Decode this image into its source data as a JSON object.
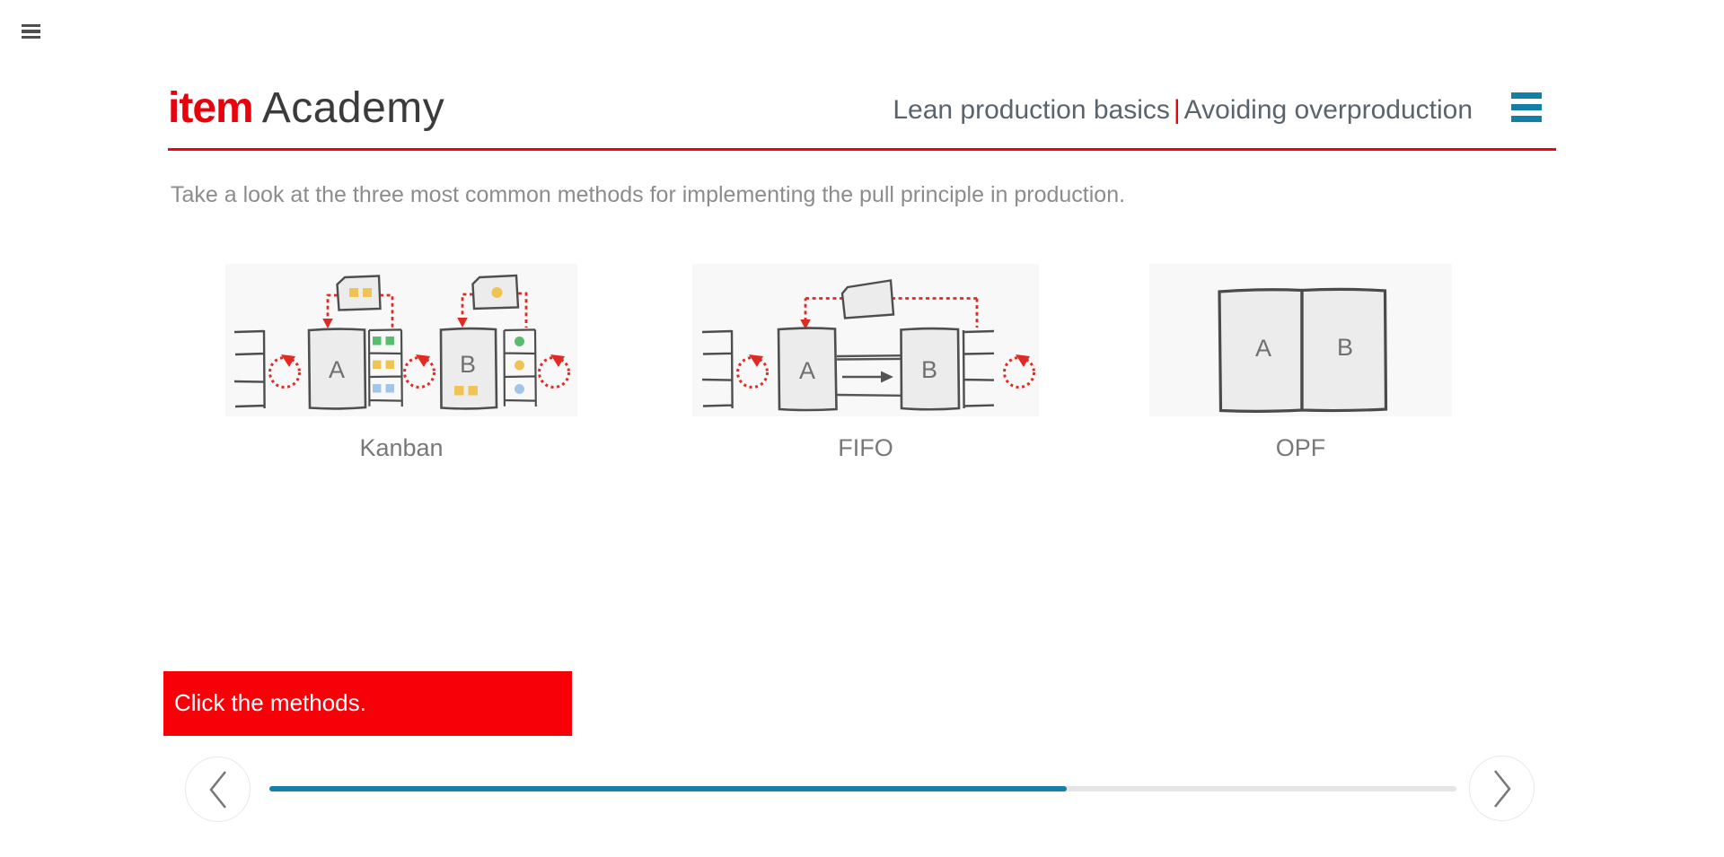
{
  "window": {
    "menu_icon": "hamburger-icon"
  },
  "header": {
    "brand": "item",
    "brand_suffix": "Academy",
    "course": "Lean production basics",
    "divider": "|",
    "lesson": "Avoiding overproduction",
    "menu_icon": "hamburger-icon",
    "underline_color": "#f80008",
    "brand_color": "#e8030c",
    "menu_icon_color": "#137fa6"
  },
  "content": {
    "instruction": "Take a look at the three most common methods for implementing the pull principle in production.",
    "prompt": "Click the methods.",
    "prompt_background": "#f80008",
    "prompt_text_color": "#ffffff",
    "methods": [
      {
        "id": "kanban",
        "label": "Kanban"
      },
      {
        "id": "fifo",
        "label": "FIFO"
      },
      {
        "id": "opf",
        "label": "OPF"
      }
    ],
    "stations": {
      "a": "A",
      "b": "B"
    },
    "diagram_colors": {
      "sketch_stroke": "#4e4e4e",
      "box_fill": "#ececec",
      "panel_background": "#f8f8f8",
      "dashed_red": "#e02a24",
      "yellow": "#f0c355",
      "green": "#57be70",
      "blue": "#a3c6e8"
    }
  },
  "player": {
    "progress_percent": 67.2,
    "progress_fill_color": "#1580a8",
    "progress_track_color": "#e5e5e5",
    "prev_icon": "chevron-left-icon",
    "next_icon": "chevron-right-icon"
  }
}
